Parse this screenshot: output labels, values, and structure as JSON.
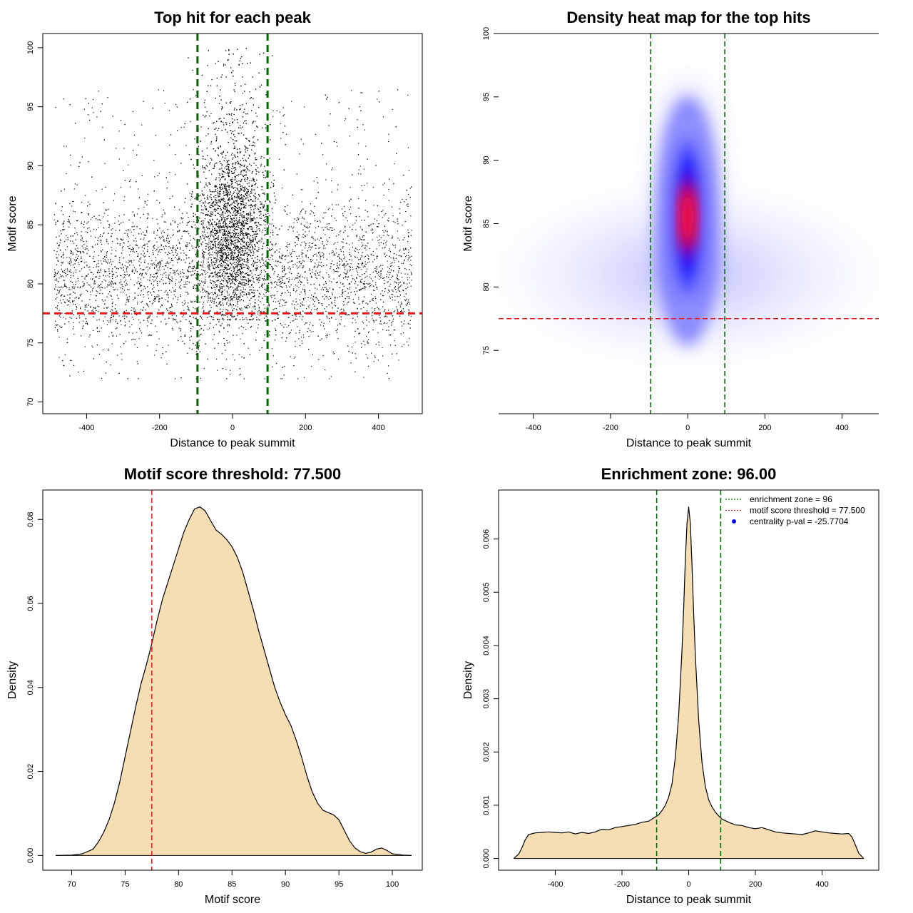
{
  "chart_data": [
    {
      "type": "scatter",
      "title": "Top hit for each peak",
      "xlabel": "Distance to peak summit",
      "ylabel": "Motif score",
      "xlim": [
        -520,
        520
      ],
      "ylim": [
        69.0,
        101.2
      ],
      "xticks": [
        -400,
        -200,
        0,
        200,
        400
      ],
      "yticks": [
        70,
        75,
        80,
        85,
        90,
        95,
        100
      ],
      "x_tick_labels": [
        "-400",
        "-200",
        "0",
        "200",
        "400"
      ],
      "y_tick_labels": [
        "70",
        "75",
        "80",
        "85",
        "90",
        "95",
        "100"
      ],
      "point_color": "#000000",
      "reference_lines": [
        {
          "orientation": "vertical",
          "value": -96,
          "color": "#006400",
          "style": "dashed"
        },
        {
          "orientation": "vertical",
          "value": 96,
          "color": "#006400",
          "style": "dashed"
        },
        {
          "orientation": "horizontal",
          "value": 77.5,
          "color": "#e41a1c",
          "style": "dashed"
        }
      ],
      "points_summary": {
        "central": {
          "x_center": 0,
          "x_spread": 45,
          "y_center": 85,
          "y_range": [
            77,
            100
          ]
        },
        "background": {
          "x_range": [
            -490,
            490
          ],
          "y_center": 80.5,
          "y_range": [
            70,
            97
          ]
        }
      }
    },
    {
      "type": "heatmap",
      "title": "Density heat map for the top hits",
      "xlabel": "Distance to peak summit",
      "ylabel": "Motif score",
      "xlim": [
        -490,
        495
      ],
      "ylim": [
        70,
        100
      ],
      "xticks": [
        -400,
        -200,
        0,
        200,
        400
      ],
      "yticks": [
        75,
        80,
        85,
        90,
        95,
        100
      ],
      "x_tick_labels": [
        "-400",
        "-200",
        "0",
        "200",
        "400"
      ],
      "y_tick_labels": [
        "75",
        "80",
        "85",
        "90",
        "95",
        "100"
      ],
      "color_scale": [
        "#ffffff",
        "#0000ff",
        "#ff0000"
      ],
      "hotspot": {
        "x": 0,
        "y": 85.5
      },
      "reference_lines": [
        {
          "orientation": "vertical",
          "value": -96,
          "color": "#006400",
          "style": "dashed"
        },
        {
          "orientation": "vertical",
          "value": 96,
          "color": "#006400",
          "style": "dashed"
        },
        {
          "orientation": "horizontal",
          "value": 77.5,
          "color": "#e41a1c",
          "style": "dashed"
        }
      ]
    },
    {
      "type": "area",
      "title": "Motif score threshold: 77.500",
      "xlabel": "Motif score",
      "ylabel": "Density",
      "xlim": [
        67.3,
        102.8
      ],
      "ylim": [
        -0.0035,
        0.087
      ],
      "xticks": [
        70,
        75,
        80,
        85,
        90,
        95,
        100
      ],
      "yticks": [
        0.0,
        0.02,
        0.04,
        0.06,
        0.08
      ],
      "x_tick_labels": [
        "70",
        "75",
        "80",
        "85",
        "90",
        "95",
        "100"
      ],
      "y_tick_labels": [
        "0.00",
        "0.02",
        "0.04",
        "0.06",
        "0.08"
      ],
      "fill_color": "#f5deb3",
      "line_color": "#000000",
      "x": [
        68.5,
        70,
        71,
        72,
        72.5,
        73,
        73.5,
        74,
        74.5,
        75,
        75.5,
        76,
        76.5,
        77,
        77.5,
        78,
        78.5,
        79,
        79.5,
        80,
        80.5,
        81,
        81.5,
        82,
        82.5,
        83,
        83.5,
        84,
        84.5,
        85,
        85.5,
        86,
        86.5,
        87,
        87.5,
        88,
        88.5,
        89,
        89.5,
        90,
        90.5,
        91,
        91.5,
        92,
        92.5,
        93,
        93.5,
        94,
        94.5,
        95,
        95.5,
        96,
        96.5,
        97,
        97.5,
        98,
        98.5,
        99,
        99.5,
        100,
        101,
        101.8
      ],
      "y": [
        0.0,
        0.0001,
        0.0004,
        0.0015,
        0.0032,
        0.0055,
        0.0085,
        0.0125,
        0.0175,
        0.0235,
        0.0295,
        0.0355,
        0.041,
        0.0455,
        0.0505,
        0.056,
        0.061,
        0.065,
        0.069,
        0.073,
        0.077,
        0.08,
        0.0825,
        0.083,
        0.082,
        0.0797,
        0.0775,
        0.0765,
        0.0752,
        0.0735,
        0.071,
        0.0675,
        0.063,
        0.0585,
        0.0535,
        0.049,
        0.0445,
        0.04,
        0.0365,
        0.0335,
        0.031,
        0.0275,
        0.0235,
        0.019,
        0.0152,
        0.0125,
        0.0108,
        0.0102,
        0.0097,
        0.0085,
        0.006,
        0.0035,
        0.0018,
        0.0009,
        0.0005,
        0.0008,
        0.0015,
        0.0018,
        0.0012,
        0.0004,
        0.0001,
        0.0
      ]
    },
    {
      "type": "area",
      "title": "Enrichment zone: 96.00",
      "xlabel": "Distance to peak summit",
      "ylabel": "Density",
      "xlim": [
        -570,
        570
      ],
      "ylim": [
        -0.00022,
        0.00692
      ],
      "xticks": [
        -400,
        -200,
        0,
        200,
        400
      ],
      "yticks": [
        0.0,
        0.001,
        0.002,
        0.003,
        0.004,
        0.005,
        0.006
      ],
      "x_tick_labels": [
        "-400",
        "-200",
        "0",
        "200",
        "400"
      ],
      "y_tick_labels": [
        "0.000",
        "0.001",
        "0.002",
        "0.003",
        "0.004",
        "0.005",
        "0.006"
      ],
      "fill_color": "#f5deb3",
      "line_color": "#000000",
      "reference_lines": [
        {
          "orientation": "vertical",
          "value": -96,
          "color": "#006400",
          "style": "dashed"
        },
        {
          "orientation": "vertical",
          "value": 96,
          "color": "#006400",
          "style": "dashed"
        }
      ],
      "x": [
        -525,
        -510,
        -500,
        -490,
        -480,
        -460,
        -440,
        -420,
        -400,
        -380,
        -360,
        -340,
        -320,
        -300,
        -280,
        -260,
        -240,
        -220,
        -200,
        -180,
        -160,
        -140,
        -120,
        -100,
        -90,
        -80,
        -70,
        -60,
        -50,
        -40,
        -30,
        -20,
        -15,
        -10,
        -5,
        0,
        5,
        10,
        15,
        20,
        30,
        40,
        50,
        60,
        70,
        80,
        90,
        100,
        120,
        140,
        160,
        180,
        200,
        220,
        240,
        260,
        280,
        300,
        320,
        340,
        360,
        380,
        400,
        420,
        440,
        460,
        480,
        490,
        500,
        510,
        525
      ],
      "y": [
        0.0,
        8e-05,
        0.0002,
        0.00035,
        0.00045,
        0.00048,
        0.00049,
        0.0005,
        0.00049,
        0.00048,
        0.0005,
        0.00046,
        0.00049,
        0.00047,
        0.0005,
        0.00055,
        0.00054,
        0.00058,
        0.0006,
        0.00062,
        0.00064,
        0.00068,
        0.0007,
        0.00078,
        0.00082,
        0.0009,
        0.001,
        0.00115,
        0.0014,
        0.0019,
        0.0027,
        0.0039,
        0.0047,
        0.0056,
        0.0063,
        0.0066,
        0.0063,
        0.0055,
        0.0046,
        0.0038,
        0.0026,
        0.0018,
        0.00135,
        0.0011,
        0.00097,
        0.00087,
        0.0008,
        0.00074,
        0.00068,
        0.00063,
        0.00062,
        0.00058,
        0.00056,
        0.00058,
        0.00054,
        0.0005,
        0.00048,
        0.00047,
        0.00046,
        0.00045,
        0.00048,
        0.00052,
        0.0005,
        0.00048,
        0.00047,
        0.00046,
        0.00047,
        0.0004,
        0.00025,
        0.0001,
        0.0
      ],
      "legend": {
        "position": "top-right",
        "entries": [
          {
            "label": "enrichment zone = 96",
            "color": "#006400",
            "symbol": "dotted-line"
          },
          {
            "label": "motif score threshold = 77.500",
            "color": "#e41a1c",
            "symbol": "dotted-line"
          },
          {
            "label": "centrality p-val = -25.7704",
            "color": "#0000ff",
            "symbol": "point"
          }
        ]
      }
    }
  ]
}
